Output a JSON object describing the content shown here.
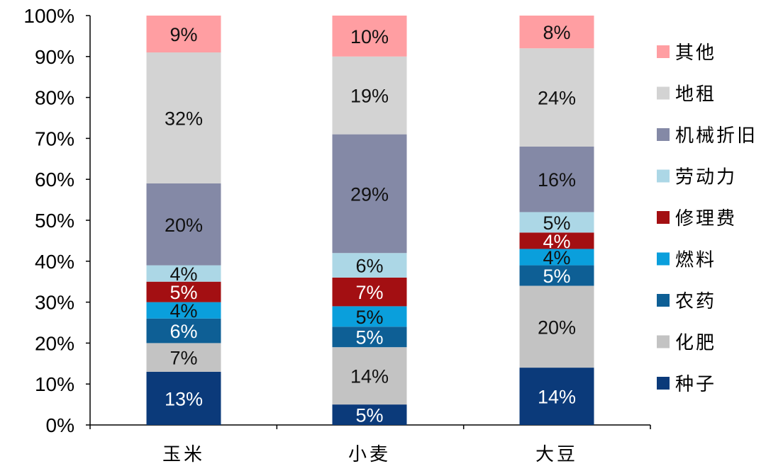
{
  "chart_data": {
    "type": "bar",
    "stacked": true,
    "categories": [
      "玉米",
      "小麦",
      "大豆"
    ],
    "series": [
      {
        "name": "种子",
        "values": [
          13,
          5,
          14
        ],
        "labels": [
          "13%",
          "5%",
          "14%"
        ],
        "color": "#0b3a7a",
        "label_color": "#ffffff"
      },
      {
        "name": "化肥",
        "values": [
          7,
          14,
          20
        ],
        "labels": [
          "7%",
          "14%",
          "20%"
        ],
        "color": "#c3c3c3",
        "label_color": "#111111"
      },
      {
        "name": "农药",
        "values": [
          6,
          5,
          5
        ],
        "labels": [
          "6%",
          "5%",
          "5%"
        ],
        "color": "#0e5f95",
        "label_color": "#ffffff"
      },
      {
        "name": "燃料",
        "values": [
          4,
          5,
          4
        ],
        "labels": [
          "4%",
          "5%",
          "4%"
        ],
        "color": "#0a9fdc",
        "label_color": "#111111"
      },
      {
        "name": "修理费",
        "values": [
          5,
          7,
          4
        ],
        "labels": [
          "5%",
          "7%",
          "4%"
        ],
        "color": "#a30f12",
        "label_color": "#ffffff"
      },
      {
        "name": "劳动力",
        "values": [
          4,
          6,
          5
        ],
        "labels": [
          "4%",
          "6%",
          "5%"
        ],
        "color": "#acd7e6",
        "label_color": "#111111"
      },
      {
        "name": "机械折旧",
        "values": [
          20,
          29,
          16
        ],
        "labels": [
          "20%",
          "29%",
          "16%"
        ],
        "color": "#8489a6",
        "label_color": "#111111"
      },
      {
        "name": "地租",
        "values": [
          32,
          19,
          24
        ],
        "labels": [
          "32%",
          "19%",
          "24%"
        ],
        "color": "#d3d3d3",
        "label_color": "#111111"
      },
      {
        "name": "其他",
        "values": [
          9,
          10,
          8
        ],
        "labels": [
          "9%",
          "10%",
          "8%"
        ],
        "color": "#ff9ea2",
        "label_color": "#111111"
      }
    ],
    "ylim": [
      0,
      100
    ],
    "yticks": [
      "0%",
      "10%",
      "20%",
      "30%",
      "40%",
      "50%",
      "60%",
      "70%",
      "80%",
      "90%",
      "100%"
    ],
    "legend_position": "right",
    "legend_order": [
      "其他",
      "地租",
      "机械折旧",
      "劳动力",
      "修理费",
      "燃料",
      "农药",
      "化肥",
      "种子"
    ],
    "grid": false
  }
}
